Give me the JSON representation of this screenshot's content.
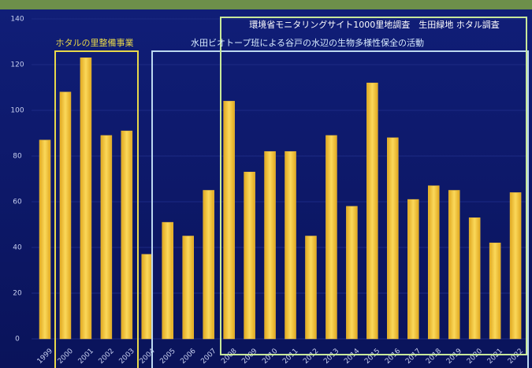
{
  "chart_data": {
    "type": "bar",
    "categories": [
      "1999",
      "2000",
      "2001",
      "2002",
      "2003",
      "2004",
      "2005",
      "2006",
      "2007",
      "2008",
      "2009",
      "2010",
      "2011",
      "2012",
      "2013",
      "2014",
      "2015",
      "2016",
      "2017",
      "2018",
      "2019",
      "2020",
      "2021",
      "2022"
    ],
    "values": [
      87,
      108,
      123,
      89,
      91,
      37,
      51,
      45,
      65,
      104,
      73,
      82,
      82,
      45,
      89,
      58,
      112,
      88,
      61,
      67,
      65,
      53,
      42,
      64
    ],
    "color": "#f2c23a",
    "ylim": [
      0,
      140
    ],
    "yticks": [
      0,
      20,
      40,
      60,
      80,
      100,
      120,
      140
    ],
    "grid": true,
    "annotations": [
      "ホタルの里整備事業",
      "水田ビオトープ班による谷戸の水辺の生物多様性保全の活動",
      "環境省モニタリングサイト1000里地調査　生田緑地 ホタル調査"
    ]
  }
}
